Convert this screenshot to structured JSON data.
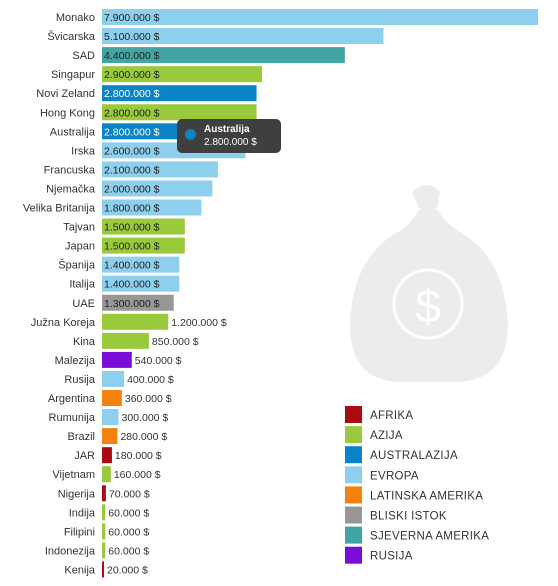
{
  "colors": {
    "AFRIKA": "#a80c12",
    "AZIJA": "#9ac93b",
    "AUSTRALAZIJA": "#0b83c7",
    "EVROPA": "#8fcfee",
    "LATINSKA AMERIKA": "#f5820f",
    "BLISKI ISTOK": "#979797",
    "SJEVERNA AMERIKA": "#43a5a1",
    "RUSIJA": "#7b0dd8"
  },
  "tooltip": {
    "name": "Australija",
    "value": "2.800.000 $"
  },
  "chart_data": {
    "type": "bar",
    "orientation": "horizontal",
    "xlim": [
      0,
      7900000
    ],
    "grid": false,
    "legend_position": "bottom-right",
    "legend": [
      "AFRIKA",
      "AZIJA",
      "AUSTRALAZIJA",
      "EVROPA",
      "LATINSKA AMERIKA",
      "BLISKI ISTOK",
      "SJEVERNA AMERIKA",
      "RUSIJA"
    ],
    "categories": [
      "Monako",
      "Švicarska",
      "SAD",
      "Singapur",
      "Novi Zeland",
      "Hong Kong",
      "Australija",
      "Irska",
      "Francuska",
      "Njemačka",
      "Velika Britanija",
      "Tajvan",
      "Japan",
      "Španija",
      "Italija",
      "UAE",
      "Južna Koreja",
      "Kina",
      "Malezija",
      "Rusija",
      "Argentina",
      "Rumunija",
      "Brazil",
      "JAR",
      "Vijetnam",
      "Nigerija",
      "Indija",
      "Filipini",
      "Indonezija",
      "Kenija"
    ],
    "values": [
      7900000,
      5100000,
      4400000,
      2900000,
      2800000,
      2800000,
      2800000,
      2600000,
      2100000,
      2000000,
      1800000,
      1500000,
      1500000,
      1400000,
      1400000,
      1300000,
      1200000,
      850000,
      540000,
      400000,
      360000,
      300000,
      280000,
      180000,
      160000,
      70000,
      60000,
      60000,
      60000,
      20000
    ],
    "value_labels": [
      "7.900.000 $",
      "5.100.000 $",
      "4.400.000 $",
      "2.900.000 $",
      "2.800.000 $",
      "2.800.000 $",
      "2.800.000 $",
      "2.600.000 $",
      "2.100.000 $",
      "2.000.000 $",
      "1.800.000 $",
      "1.500.000 $",
      "1.500.000 $",
      "1.400.000 $",
      "1.400.000 $",
      "1.300.000 $",
      "1.200.000 $",
      "850.000 $",
      "540.000 $",
      "400.000 $",
      "360.000 $",
      "300.000 $",
      "280.000 $",
      "180.000 $",
      "160.000 $",
      "70.000 $",
      "60.000 $",
      "60.000 $",
      "60.000 $",
      "20.000 $"
    ],
    "regions": [
      "EVROPA",
      "EVROPA",
      "SJEVERNA AMERIKA",
      "AZIJA",
      "AUSTRALAZIJA",
      "AZIJA",
      "AUSTRALAZIJA",
      "EVROPA",
      "EVROPA",
      "EVROPA",
      "EVROPA",
      "AZIJA",
      "AZIJA",
      "EVROPA",
      "EVROPA",
      "BLISKI ISTOK",
      "AZIJA",
      "AZIJA",
      "RUSIJA",
      "EVROPA",
      "LATINSKA AMERIKA",
      "EVROPA",
      "LATINSKA AMERIKA",
      "AFRIKA",
      "AZIJA",
      "AFRIKA",
      "AZIJA",
      "AZIJA",
      "AZIJA",
      "AFRIKA"
    ]
  }
}
